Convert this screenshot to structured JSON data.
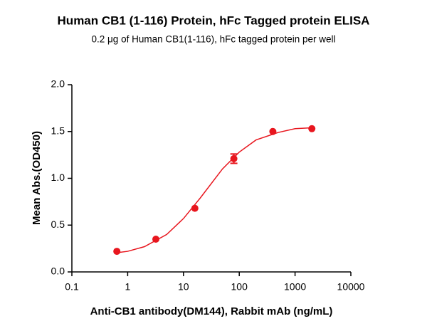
{
  "chart_data": {
    "type": "scatter",
    "title": "Human CB1 (1-116) Protein, hFc Tagged protein ELISA",
    "subtitle": "0.2 μg of Human CB1(1-116), hFc tagged protein per well",
    "xlabel": "Anti-CB1 antibody(DM144), Rabbit mAb (ng/mL)",
    "ylabel": "Mean Abs.(OD450)",
    "xscale": "log",
    "xlim": [
      0.1,
      10000
    ],
    "xticks": [
      0.1,
      1,
      10,
      100,
      1000,
      10000
    ],
    "ylim": [
      0,
      2
    ],
    "yticks": [
      {
        "value": 0,
        "label": "0.0"
      },
      0.5,
      {
        "value": 1,
        "label": "1.0"
      },
      1.5,
      {
        "value": 2,
        "label": "2.0"
      }
    ],
    "color": "#e8161e",
    "x": [
      0.64,
      3.2,
      16,
      80,
      400,
      2000
    ],
    "values": [
      0.22,
      0.35,
      0.68,
      1.21,
      1.5,
      1.53
    ],
    "errors": [
      null,
      null,
      null,
      0.05,
      null,
      null
    ],
    "curve": {
      "x": [
        0.64,
        1,
        2,
        5,
        10,
        20,
        50,
        100,
        200,
        500,
        1000,
        2000
      ],
      "values": [
        0.205,
        0.22,
        0.27,
        0.4,
        0.57,
        0.79,
        1.1,
        1.28,
        1.41,
        1.49,
        1.53,
        1.54
      ]
    }
  }
}
